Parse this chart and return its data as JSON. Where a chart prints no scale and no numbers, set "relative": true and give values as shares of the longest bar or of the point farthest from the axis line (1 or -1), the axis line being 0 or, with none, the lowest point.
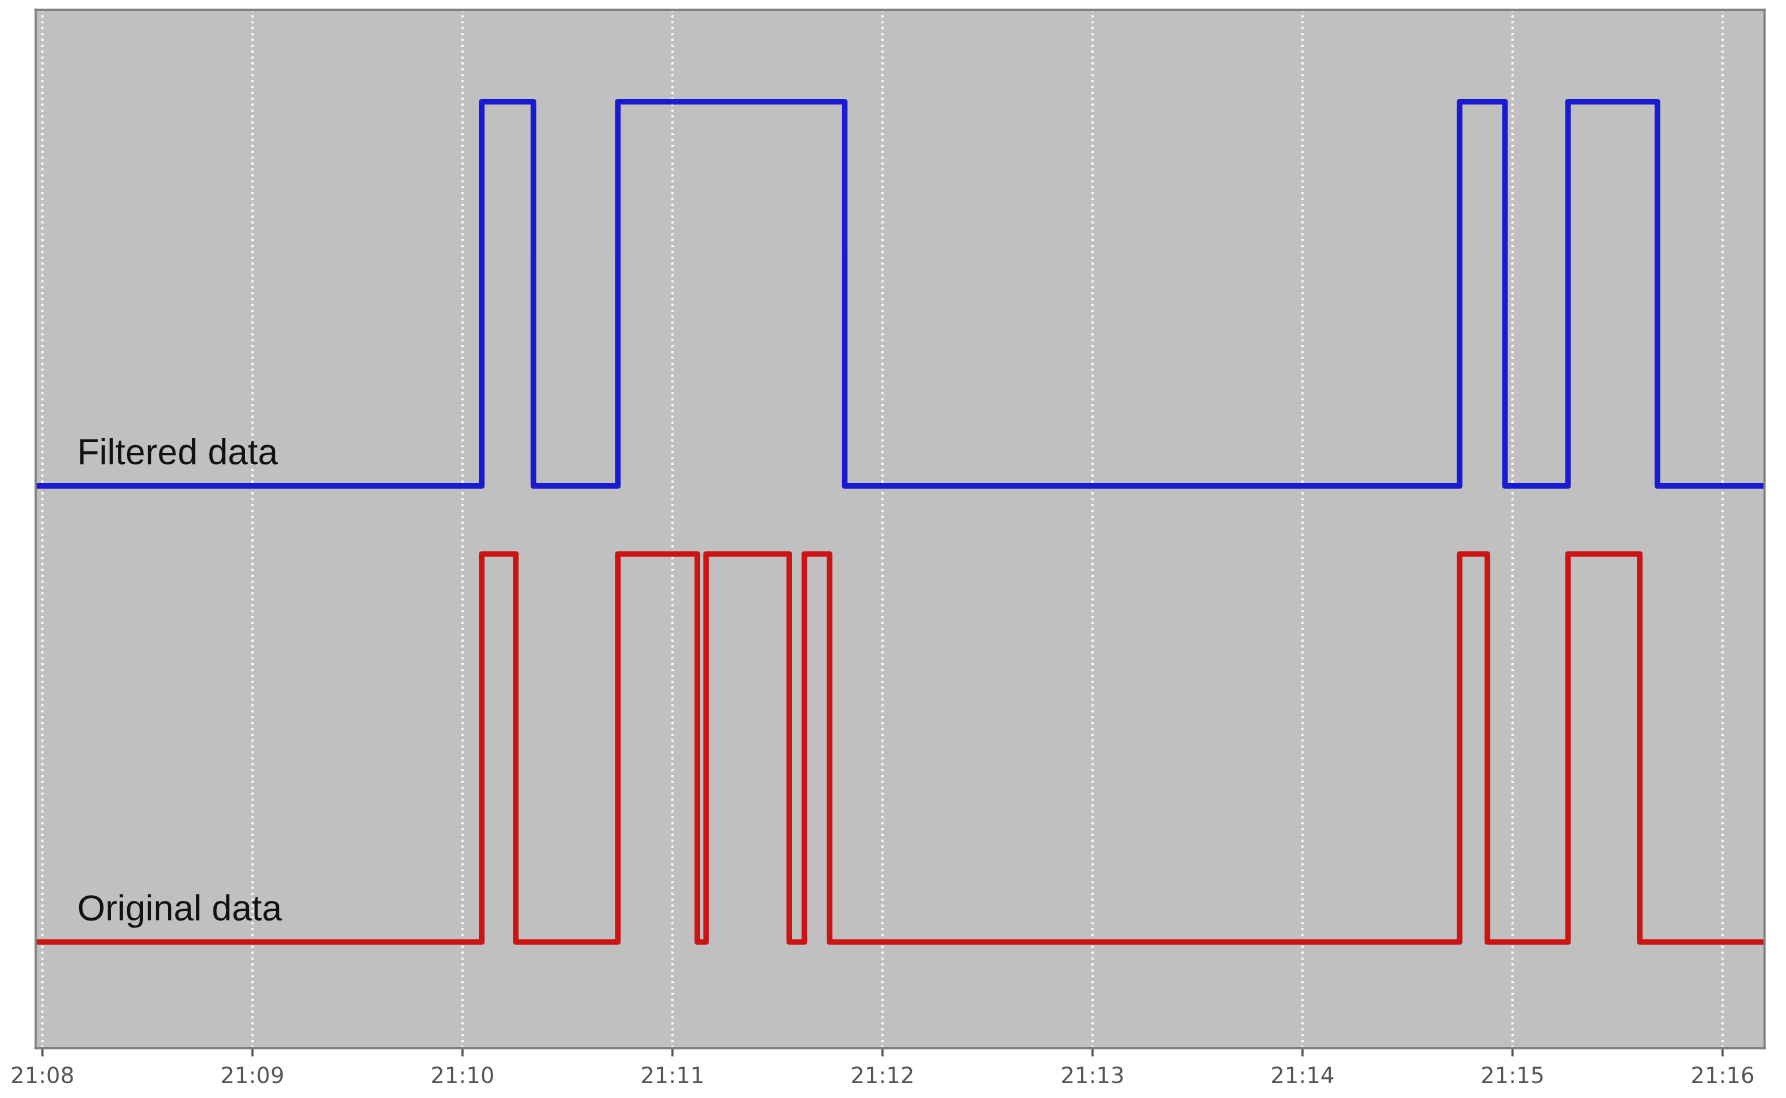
{
  "chart_data": {
    "type": "step",
    "relative": true,
    "grid": "x",
    "tick_labels": "x",
    "legend": "left",
    "line_style": "solid",
    "marker": "none",
    "xlim": [
      21.1328,
      21.27
    ],
    "xticks": [
      {
        "value": 21.13333,
        "label": "21:08"
      },
      {
        "value": 21.15,
        "label": "21:09"
      },
      {
        "value": 21.16667,
        "label": "21:10"
      },
      {
        "value": 21.18333,
        "label": "21:11"
      },
      {
        "value": 21.2,
        "label": "21:12"
      },
      {
        "value": 21.21667,
        "label": "21:13"
      },
      {
        "value": 21.23333,
        "label": "21:14"
      },
      {
        "value": 21.25,
        "label": "21:15"
      },
      {
        "value": 21.26667,
        "label": "21:16"
      }
    ],
    "series": [
      {
        "name": "Filtered data",
        "color": "#1a1ad2",
        "x": [
          21.1328,
          21.1682,
          21.1723,
          21.179,
          21.197,
          21.2458,
          21.2494,
          21.2544,
          21.2615,
          21.27
        ],
        "values": [
          0.594,
          1,
          0.594,
          1,
          0.594,
          1,
          0.594,
          1,
          0.594,
          0.594
        ]
      },
      {
        "name": "Original data",
        "color": "#cc1414",
        "x": [
          21.1328,
          21.1682,
          21.1709,
          21.179,
          21.1853,
          21.186,
          21.1926,
          21.1938,
          21.1958,
          21.2458,
          21.248,
          21.2544,
          21.2601,
          21.27
        ],
        "values": [
          0.112,
          0.522,
          0.112,
          0.522,
          0.112,
          0.522,
          0.112,
          0.522,
          0.112,
          0.522,
          0.112,
          0.522,
          0.112,
          0.112
        ]
      }
    ]
  }
}
